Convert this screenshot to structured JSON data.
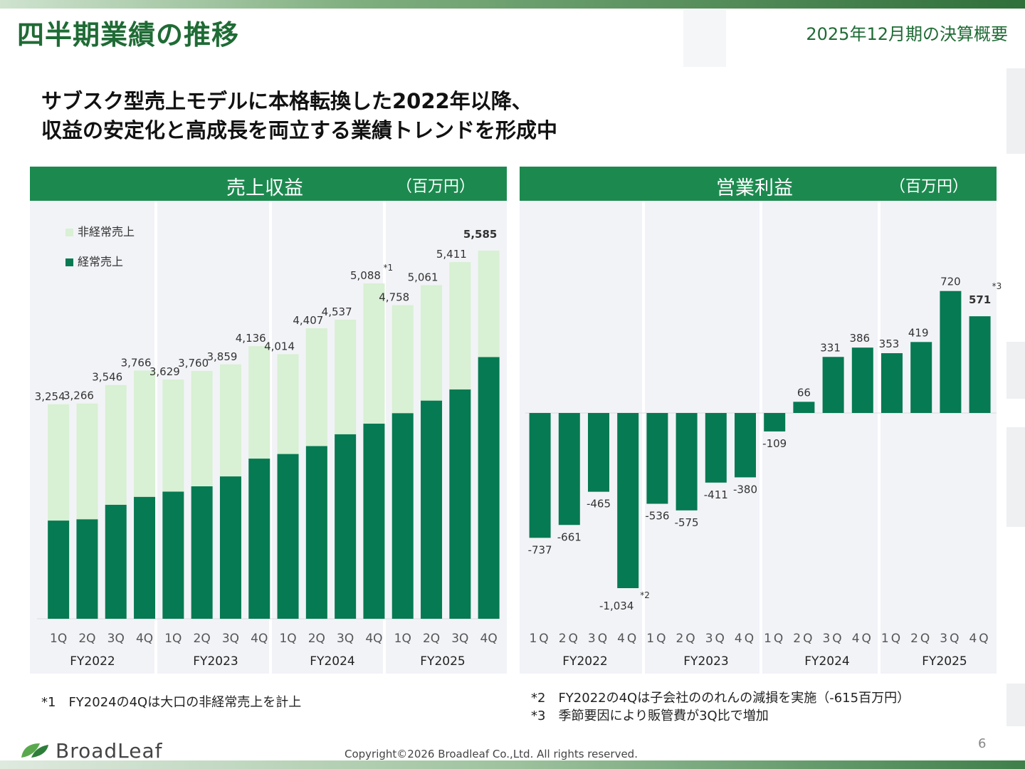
{
  "page": {
    "title": "四半期業績の推移",
    "period": "2025年12月期の決算概要",
    "headline_line1": "サブスク型売上モデルに本格転換した2022年以降、",
    "headline_line2": "収益の安定化と高成長を両立する業績トレンドを形成中",
    "footnote1": "*1　FY2024の4Qは大口の非経常売上を計上",
    "footnote2": "*2　FY2022の4Qは子会社ののれんの減損を実施（-615百万円）",
    "footnote3": "*3　季節要因により販管費が3Q比で増加",
    "copyright": "Copyright©2026 Broadleaf Co.,Ltd. All rights reserved.",
    "page_number": "6",
    "logo_text": "BroadLeaf",
    "colors": {
      "primary_green": "#1c8a4f",
      "dark_bar": "#067a52",
      "light_bar": "#d8f0d3",
      "panel_bg": "#f2f3f7",
      "title_green": "#1f6b35"
    }
  },
  "chart_data": [
    {
      "type": "bar",
      "stacked": true,
      "title": "売上収益",
      "unit_label": "（百万円）",
      "categories": [
        "1Q",
        "2Q",
        "3Q",
        "4Q",
        "1Q",
        "2Q",
        "3Q",
        "4Q",
        "1Q",
        "2Q",
        "3Q",
        "4Q",
        "1Q",
        "2Q",
        "3Q",
        "4Q"
      ],
      "groups": [
        "FY2022",
        "FY2023",
        "FY2024",
        "FY2025"
      ],
      "series": [
        {
          "name": "経常売上",
          "color": "#067a52",
          "values": [
            1490,
            1510,
            1730,
            1850,
            1930,
            2010,
            2160,
            2430,
            2500,
            2620,
            2800,
            2960,
            3120,
            3310,
            3480,
            3970
          ]
        },
        {
          "name": "非経常売上",
          "color": "#d8f0d3",
          "values": [
            1764,
            1756,
            1816,
            1916,
            1699,
            1750,
            1699,
            1706,
            1514,
            1787,
            1737,
            2128,
            1638,
            1751,
            1931,
            1615
          ]
        }
      ],
      "totals": [
        3254,
        3266,
        3546,
        3766,
        3629,
        3760,
        3859,
        4136,
        4014,
        4407,
        4537,
        5088,
        4758,
        5061,
        5411,
        5585
      ],
      "total_labels": [
        "3,254",
        "3,266",
        "3,546",
        "3,766",
        "3,629",
        "3,760",
        "3,859",
        "4,136",
        "4,014",
        "4,407",
        "4,537",
        "5,088",
        "4,758",
        "5,061",
        "5,411",
        "5,585"
      ],
      "annotations": [
        {
          "index": 11,
          "text": "*1"
        }
      ],
      "legend": "top-left",
      "ylim": [
        0,
        6000
      ]
    },
    {
      "type": "bar",
      "title": "営業利益",
      "unit_label": "（百万円）",
      "categories": [
        "1Q",
        "2Q",
        "3Q",
        "4Q",
        "1Q",
        "2Q",
        "3Q",
        "4Q",
        "1Q",
        "2Q",
        "3Q",
        "4Q",
        "1Q",
        "2Q",
        "3Q",
        "4Q"
      ],
      "groups": [
        "FY2022",
        "FY2023",
        "FY2024",
        "FY2025"
      ],
      "series": [
        {
          "color": "#067a52",
          "values": [
            -737,
            -661,
            -465,
            -1034,
            -536,
            -575,
            -411,
            -380,
            -109,
            66,
            331,
            386,
            353,
            419,
            720,
            571
          ]
        }
      ],
      "value_labels": [
        "-737",
        "-661",
        "-465",
        "-1,034",
        "-536",
        "-575",
        "-411",
        "-380",
        "-109",
        "66",
        "331",
        "386",
        "353",
        "419",
        "720",
        "571"
      ],
      "annotations": [
        {
          "index": 3,
          "text": "*2"
        },
        {
          "index": 15,
          "text": "*3"
        }
      ],
      "ylim": [
        -1100,
        900
      ]
    }
  ]
}
